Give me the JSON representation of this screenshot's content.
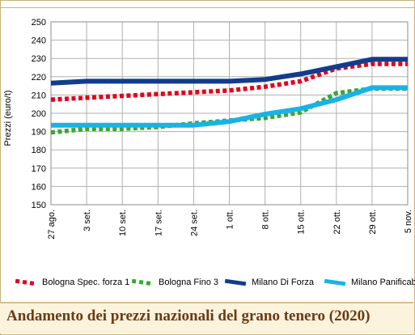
{
  "chart_data": {
    "type": "line",
    "title": "",
    "ylabel": "Prezzi (euro/t)",
    "xlabel": "",
    "ylim": [
      150,
      250
    ],
    "yticks": [
      150,
      160,
      170,
      180,
      190,
      200,
      210,
      220,
      230,
      240,
      250
    ],
    "categories": [
      "27 ago.",
      "3 set.",
      "10 set.",
      "17 set.",
      "24 set.",
      "1 ott.",
      "8 ott.",
      "15 ott.",
      "22 ott.",
      "29 ott.",
      "5 nov."
    ],
    "grid": true,
    "legend_position": "bottom",
    "series": [
      {
        "name": "Bologna Spec. forza 1",
        "color": "#e3001b",
        "style": "dotted",
        "values": [
          207.5,
          208.5,
          209.5,
          210.5,
          211.5,
          212.5,
          214.5,
          217.5,
          224.5,
          227,
          227
        ]
      },
      {
        "name": "Bologna Fino 3",
        "color": "#3aa635",
        "style": "dotted",
        "values": [
          189.5,
          191.5,
          191.5,
          192.5,
          194.5,
          196,
          197.5,
          200.5,
          211,
          213.5,
          213.5
        ]
      },
      {
        "name": "Milano Di Forza",
        "color": "#123d8c",
        "style": "solid",
        "values": [
          216.5,
          217.5,
          217.5,
          217.5,
          217.5,
          217.5,
          218.5,
          221.5,
          225.5,
          229.5,
          229.5
        ]
      },
      {
        "name": "Milano Panificabile",
        "color": "#18b3e6",
        "style": "solid",
        "values": [
          193.5,
          193.5,
          193.5,
          193.5,
          193.5,
          195.5,
          199.5,
          202.5,
          207.5,
          214,
          214
        ]
      }
    ]
  },
  "caption": "Andamento dei prezzi nazionali del grano tenero (2020)"
}
